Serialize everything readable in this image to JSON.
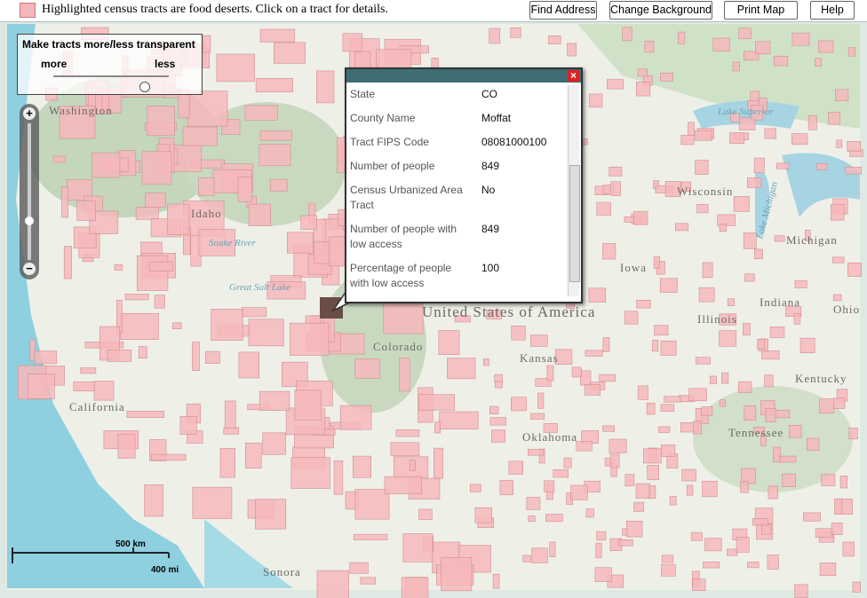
{
  "toolbar": {
    "legend_text": "Highlighted census tracts are food deserts. Click on a tract for details.",
    "buttons": [
      "Find Address",
      "Change Background",
      "Print Map",
      "Help"
    ]
  },
  "transparency": {
    "title": "Make tracts more/less transparent",
    "more": "more",
    "less": "less"
  },
  "popup": {
    "rows": [
      [
        "State",
        "CO"
      ],
      [
        "County Name",
        "Moffat"
      ],
      [
        "Tract FIPS Code",
        "08081000100"
      ],
      [
        "Number of people",
        "849"
      ],
      [
        "Census Urbanized Area Tract",
        "No"
      ],
      [
        "Number of people with low access",
        "849"
      ],
      [
        "Percentage of people with low access",
        "100"
      ]
    ]
  },
  "scale": {
    "km": "500 km",
    "mi": "400 mi"
  },
  "map_labels": [
    "Washington",
    "Idaho",
    "Snake River",
    "Great Salt Lake",
    "Colorado",
    "Kansas",
    "Oklahoma",
    "Iowa",
    "Illinois",
    "Indiana",
    "Ohio",
    "Michigan",
    "Wisconsin",
    "Lake Superior",
    "Lake Michigan",
    "California",
    "Kentucky",
    "Tennessee",
    "Sonora",
    "United States of America"
  ]
}
